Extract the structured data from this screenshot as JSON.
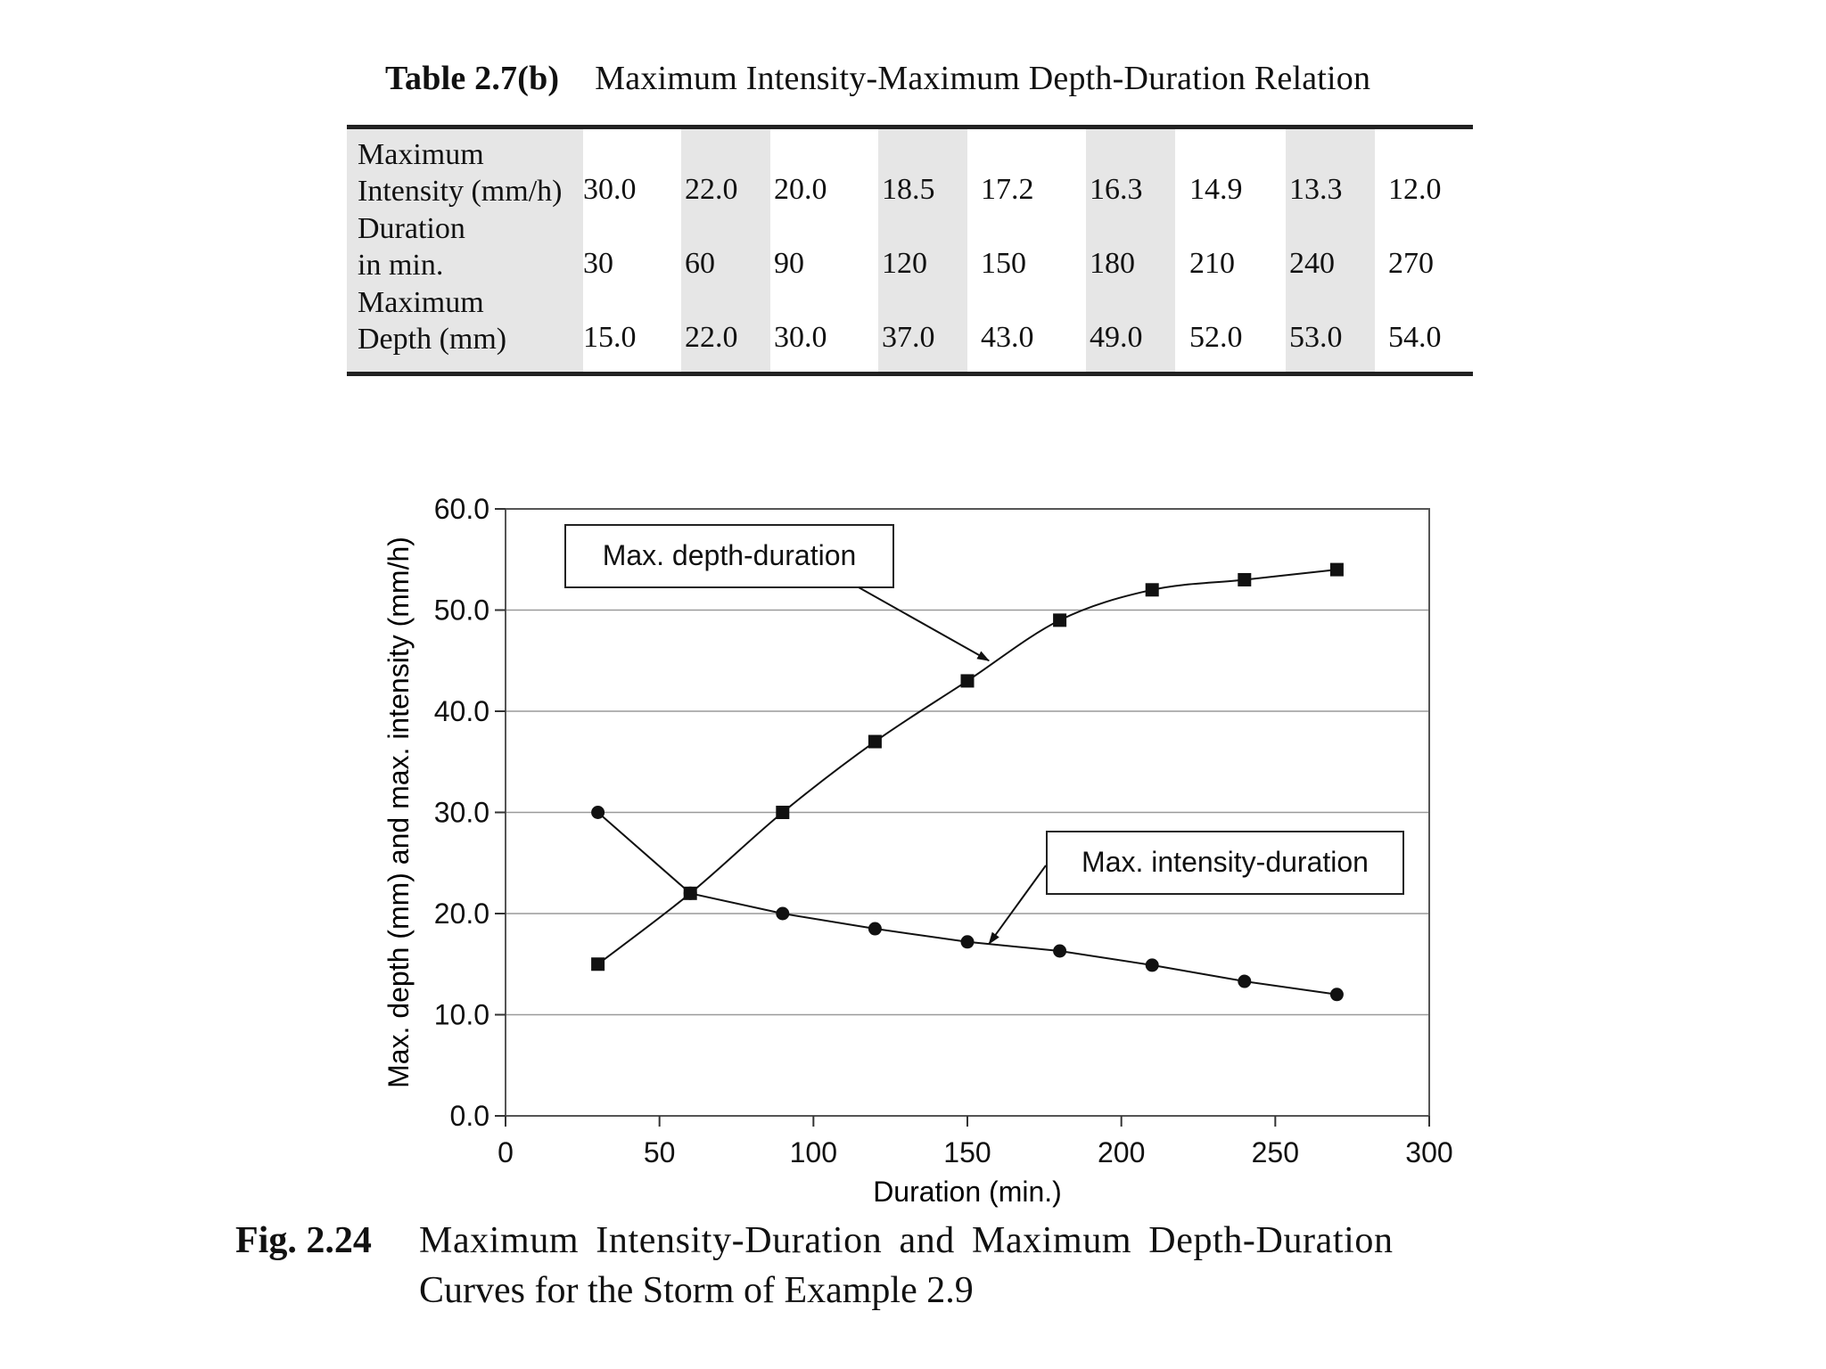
{
  "table": {
    "number": "Table 2.7(b)",
    "title": "Maximum Intensity-Maximum Depth-Duration Relation",
    "rows": [
      {
        "label_lines": [
          "Maximum",
          "Intensity (mm/h)"
        ],
        "values": [
          "30.0",
          "22.0",
          "20.0",
          "18.5",
          "17.2",
          "16.3",
          "14.9",
          "13.3",
          "12.0"
        ]
      },
      {
        "label_lines": [
          "Duration",
          "in min."
        ],
        "values": [
          "30",
          "60",
          "90",
          "120",
          "150",
          "180",
          "210",
          "240",
          "270"
        ]
      },
      {
        "label_lines": [
          "Maximum",
          "Depth (mm)"
        ],
        "values": [
          "15.0",
          "22.0",
          "30.0",
          "37.0",
          "43.0",
          "49.0",
          "52.0",
          "53.0",
          "54.0"
        ]
      }
    ]
  },
  "chart_data": {
    "type": "line",
    "xlabel": "Duration (min.)",
    "ylabel": "Max. depth (mm) and max. intensity (mm/h)",
    "xlim": [
      0,
      300
    ],
    "ylim": [
      0,
      60
    ],
    "xticks": [
      0,
      50,
      100,
      150,
      200,
      250,
      300
    ],
    "xtick_labels": [
      "0",
      "50",
      "100",
      "150",
      "200",
      "250",
      "300"
    ],
    "yticks": [
      0,
      10,
      20,
      30,
      40,
      50,
      60
    ],
    "ytick_labels": [
      "0.0",
      "10.0",
      "20.0",
      "30.0",
      "40.0",
      "50.0",
      "60.0"
    ],
    "grid": "horizontal",
    "series": [
      {
        "name": "Max. depth-duration",
        "marker": "square",
        "color": "#111111",
        "smooth": true,
        "x": [
          30,
          60,
          90,
          120,
          150,
          180,
          210,
          240,
          270
        ],
        "y": [
          15.0,
          22.0,
          30.0,
          37.0,
          43.0,
          49.0,
          52.0,
          53.0,
          54.0
        ]
      },
      {
        "name": "Max. intensity-duration",
        "marker": "circle",
        "color": "#111111",
        "smooth": false,
        "x": [
          30,
          60,
          90,
          120,
          150,
          180,
          210,
          240,
          270
        ],
        "y": [
          30.0,
          22.0,
          20.0,
          18.5,
          17.2,
          16.3,
          14.9,
          13.3,
          12.0
        ]
      }
    ],
    "annotations": [
      {
        "text": "Max. depth-duration",
        "points_to_x": 157,
        "points_to_y": 45
      },
      {
        "text": "Max. intensity-duration",
        "points_to_x": 157,
        "points_to_y": 17
      }
    ]
  },
  "figure": {
    "number": "Fig. 2.24",
    "caption_line1": "Maximum Intensity-Duration and Maximum Depth-Duration",
    "caption_line2": "Curves for the Storm of Example 2.9"
  }
}
